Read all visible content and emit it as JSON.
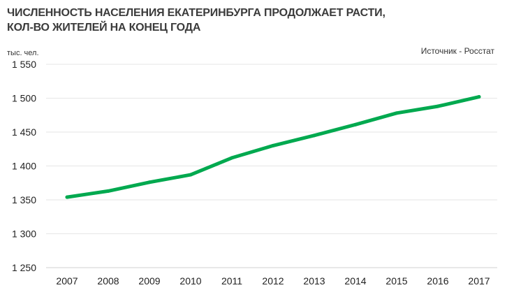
{
  "chart_data": {
    "type": "line",
    "title": "ЧИСЛЕННОСТЬ НАСЕЛЕНИЯ ЕКАТЕРИНБУРГА ПРОДОЛЖАЕТ РАСТИ,",
    "subtitle": "КОЛ-ВО ЖИТЕЛЕЙ НА КОНЕЦ ГОДА",
    "source": "Источник - Росстат",
    "ylabel": "тыс. чел.",
    "xlabel": "",
    "categories": [
      "2007",
      "2008",
      "2009",
      "2010",
      "2011",
      "2012",
      "2013",
      "2014",
      "2015",
      "2016",
      "2017"
    ],
    "series": [
      {
        "values": [
          1354,
          1363,
          1376,
          1387,
          1412,
          1430,
          1445,
          1461,
          1478,
          1488,
          1502
        ],
        "color": "#00a94f"
      }
    ],
    "ylim": [
      1250,
      1550
    ],
    "yticks": [
      1250,
      1300,
      1350,
      1400,
      1450,
      1500,
      1550
    ],
    "ytick_labels": [
      "1 250",
      "1 300",
      "1 350",
      "1 400",
      "1 450",
      "1 500",
      "1 550"
    ],
    "grid": true,
    "grid_color": "#e6e6e6"
  }
}
